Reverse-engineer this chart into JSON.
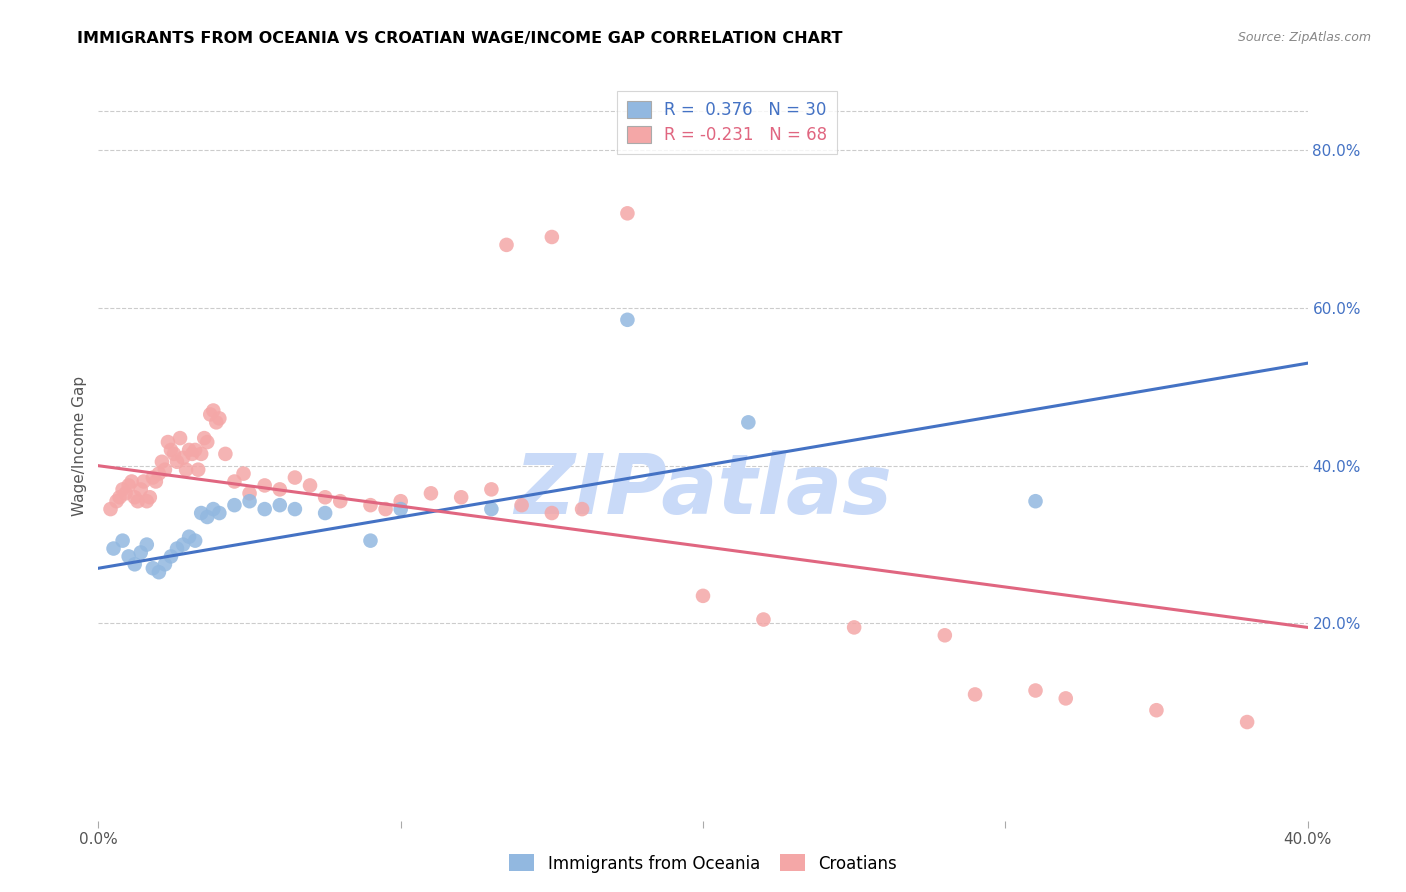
{
  "title": "IMMIGRANTS FROM OCEANIA VS CROATIAN WAGE/INCOME GAP CORRELATION CHART",
  "source": "Source: ZipAtlas.com",
  "ylabel": "Wage/Income Gap",
  "xlim": [
    0.0,
    0.4
  ],
  "ylim": [
    -0.05,
    0.9
  ],
  "right_yticks": [
    0.2,
    0.4,
    0.6,
    0.8
  ],
  "right_yticklabels": [
    "20.0%",
    "40.0%",
    "60.0%",
    "80.0%"
  ],
  "xticks": [
    0.0,
    0.1,
    0.2,
    0.3,
    0.4
  ],
  "xticklabels": [
    "0.0%",
    "",
    "",
    "",
    "40.0%"
  ],
  "blue_color": "#92b8e0",
  "pink_color": "#f4a7a7",
  "blue_line_color": "#4472c4",
  "pink_line_color": "#e06680",
  "watermark": "ZIPatlas",
  "watermark_color": "#c9daf8",
  "blue_scatter": [
    [
      0.005,
      0.295
    ],
    [
      0.008,
      0.305
    ],
    [
      0.01,
      0.285
    ],
    [
      0.012,
      0.275
    ],
    [
      0.014,
      0.29
    ],
    [
      0.016,
      0.3
    ],
    [
      0.018,
      0.27
    ],
    [
      0.02,
      0.265
    ],
    [
      0.022,
      0.275
    ],
    [
      0.024,
      0.285
    ],
    [
      0.026,
      0.295
    ],
    [
      0.028,
      0.3
    ],
    [
      0.03,
      0.31
    ],
    [
      0.032,
      0.305
    ],
    [
      0.034,
      0.34
    ],
    [
      0.036,
      0.335
    ],
    [
      0.038,
      0.345
    ],
    [
      0.04,
      0.34
    ],
    [
      0.045,
      0.35
    ],
    [
      0.05,
      0.355
    ],
    [
      0.055,
      0.345
    ],
    [
      0.06,
      0.35
    ],
    [
      0.065,
      0.345
    ],
    [
      0.075,
      0.34
    ],
    [
      0.09,
      0.305
    ],
    [
      0.1,
      0.345
    ],
    [
      0.13,
      0.345
    ],
    [
      0.175,
      0.585
    ],
    [
      0.215,
      0.455
    ],
    [
      0.31,
      0.355
    ]
  ],
  "pink_scatter": [
    [
      0.004,
      0.345
    ],
    [
      0.006,
      0.355
    ],
    [
      0.007,
      0.36
    ],
    [
      0.008,
      0.37
    ],
    [
      0.009,
      0.365
    ],
    [
      0.01,
      0.375
    ],
    [
      0.011,
      0.38
    ],
    [
      0.012,
      0.36
    ],
    [
      0.013,
      0.355
    ],
    [
      0.014,
      0.37
    ],
    [
      0.015,
      0.38
    ],
    [
      0.016,
      0.355
    ],
    [
      0.017,
      0.36
    ],
    [
      0.018,
      0.385
    ],
    [
      0.019,
      0.38
    ],
    [
      0.02,
      0.39
    ],
    [
      0.021,
      0.405
    ],
    [
      0.022,
      0.395
    ],
    [
      0.023,
      0.43
    ],
    [
      0.024,
      0.42
    ],
    [
      0.025,
      0.415
    ],
    [
      0.026,
      0.405
    ],
    [
      0.027,
      0.435
    ],
    [
      0.028,
      0.41
    ],
    [
      0.029,
      0.395
    ],
    [
      0.03,
      0.42
    ],
    [
      0.031,
      0.415
    ],
    [
      0.032,
      0.42
    ],
    [
      0.033,
      0.395
    ],
    [
      0.034,
      0.415
    ],
    [
      0.035,
      0.435
    ],
    [
      0.036,
      0.43
    ],
    [
      0.037,
      0.465
    ],
    [
      0.038,
      0.47
    ],
    [
      0.039,
      0.455
    ],
    [
      0.04,
      0.46
    ],
    [
      0.042,
      0.415
    ],
    [
      0.045,
      0.38
    ],
    [
      0.048,
      0.39
    ],
    [
      0.05,
      0.365
    ],
    [
      0.055,
      0.375
    ],
    [
      0.06,
      0.37
    ],
    [
      0.065,
      0.385
    ],
    [
      0.07,
      0.375
    ],
    [
      0.075,
      0.36
    ],
    [
      0.08,
      0.355
    ],
    [
      0.09,
      0.35
    ],
    [
      0.095,
      0.345
    ],
    [
      0.1,
      0.355
    ],
    [
      0.11,
      0.365
    ],
    [
      0.12,
      0.36
    ],
    [
      0.13,
      0.37
    ],
    [
      0.14,
      0.35
    ],
    [
      0.15,
      0.34
    ],
    [
      0.16,
      0.345
    ],
    [
      0.135,
      0.68
    ],
    [
      0.15,
      0.69
    ],
    [
      0.175,
      0.72
    ],
    [
      0.2,
      0.235
    ],
    [
      0.22,
      0.205
    ],
    [
      0.25,
      0.195
    ],
    [
      0.28,
      0.185
    ],
    [
      0.29,
      0.11
    ],
    [
      0.31,
      0.115
    ],
    [
      0.32,
      0.105
    ],
    [
      0.35,
      0.09
    ],
    [
      0.38,
      0.075
    ]
  ],
  "blue_trendline": [
    [
      0.0,
      0.27
    ],
    [
      0.4,
      0.53
    ]
  ],
  "pink_trendline": [
    [
      0.0,
      0.4
    ],
    [
      0.4,
      0.195
    ]
  ]
}
